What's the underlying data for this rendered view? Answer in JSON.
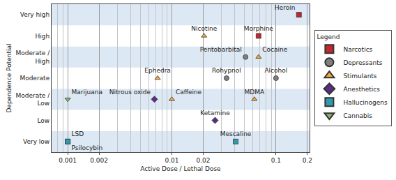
{
  "chart_data": {
    "type": "scatter",
    "log": "x",
    "grid": true,
    "legend": "right",
    "legend_title": "Legend",
    "x_label": "Active Dose / Lethal Dose",
    "y_label": "Dependence Potential",
    "categories": [
      "Very low",
      "Low",
      "Moderate / Low",
      "Moderate",
      "Moderate / High",
      "High",
      "Very high"
    ],
    "xlim": [
      0.0007,
      0.21
    ],
    "xticks": [
      0.001,
      0.002,
      0.01,
      0.02,
      0.1,
      0.2
    ],
    "series": [
      {
        "name": "Narcotics",
        "color": "#c0282d",
        "marker": "square",
        "labels": [
          "Heroin",
          "Morphine"
        ],
        "x": [
          0.166,
          0.068
        ],
        "y": [
          "Very high",
          "High"
        ]
      },
      {
        "name": "Depressants",
        "color": "#7f7f7f",
        "marker": "circle",
        "labels": [
          "Pentobarbital",
          "Rohypnol",
          "Alcohol"
        ],
        "x": [
          0.051,
          0.0335,
          0.1
        ],
        "y": [
          "Moderate / High",
          "Moderate",
          "Moderate"
        ]
      },
      {
        "name": "Stimulants",
        "color": "#f2a93b",
        "marker": "triangle-up",
        "labels": [
          "Nicotine",
          "Cocaine",
          "Ephedra",
          "Caffeine",
          "MDMA"
        ],
        "x": [
          0.0204,
          0.068,
          0.0073,
          0.01,
          0.062
        ],
        "y": [
          "High",
          "Moderate / High",
          "Moderate",
          "Moderate / Low",
          "Moderate / Low"
        ]
      },
      {
        "name": "Anesthetics",
        "color": "#5b2c83",
        "marker": "diamond",
        "labels": [
          "Nitrous oxide",
          "Ketamine"
        ],
        "x": [
          0.0068,
          0.026
        ],
        "y": [
          "Moderate / Low",
          "Low"
        ]
      },
      {
        "name": "Hallucinogens",
        "color": "#2f9bb0",
        "marker": "square",
        "labels": [
          "LSD",
          "Psilocybin",
          "Mescaline"
        ],
        "x": [
          0.001,
          0.001,
          0.041
        ],
        "y": [
          "Very low",
          "Very low",
          "Very low"
        ]
      },
      {
        "name": "Cannabis",
        "color": "#8db36b",
        "marker": "triangle-down",
        "labels": [
          "Marijuana"
        ],
        "x": [
          0.001
        ],
        "y": [
          "Moderate / Low"
        ]
      }
    ]
  }
}
